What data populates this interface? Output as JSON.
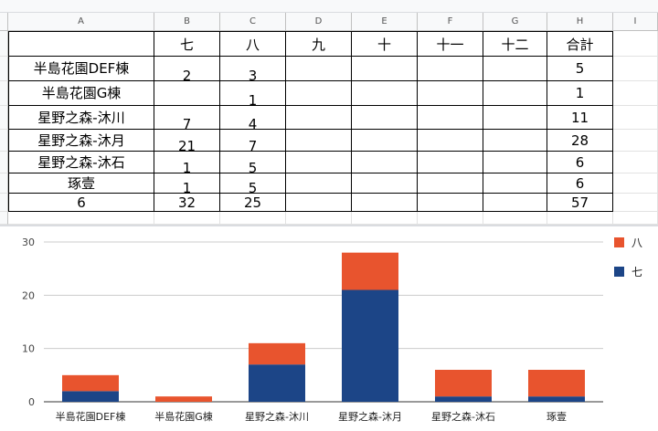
{
  "columns": [
    "A",
    "B",
    "C",
    "D",
    "E",
    "F",
    "G",
    "H",
    "I"
  ],
  "header_row": [
    "",
    "七",
    "八",
    "九",
    "十",
    "十一",
    "十二",
    "合計"
  ],
  "rows": [
    [
      "半島花園DEF棟",
      "2",
      "3",
      "",
      "",
      "",
      "",
      "5"
    ],
    [
      "半島花園G棟",
      "",
      "1",
      "",
      "",
      "",
      "",
      "1"
    ],
    [
      "星野之森-沐川",
      "7",
      "4",
      "",
      "",
      "",
      "",
      "11"
    ],
    [
      "星野之森-沐月",
      "21",
      "7",
      "",
      "",
      "",
      "",
      "28"
    ],
    [
      "星野之森-沐石",
      "1",
      "5",
      "",
      "",
      "",
      "",
      "6"
    ],
    [
      "琢壹",
      "1",
      "5",
      "",
      "",
      "",
      "",
      "6"
    ],
    [
      "6",
      "32",
      "25",
      "",
      "",
      "",
      "",
      "57"
    ]
  ],
  "chart_data": {
    "type": "bar",
    "stacked": true,
    "categories": [
      "半島花園DEF棟",
      "半島花園G棟",
      "星野之森-沐川",
      "星野之森-沐月",
      "星野之森-沐石",
      "琢壹"
    ],
    "series": [
      {
        "name": "七",
        "values": [
          2,
          0,
          7,
          21,
          1,
          1
        ],
        "color": "#1c4587"
      },
      {
        "name": "八",
        "values": [
          3,
          1,
          4,
          7,
          5,
          5
        ],
        "color": "#e8542e"
      }
    ],
    "yticks": [
      "0",
      "10",
      "20",
      "30"
    ],
    "ylim": [
      0,
      30
    ],
    "legend": "right",
    "grid": true
  }
}
